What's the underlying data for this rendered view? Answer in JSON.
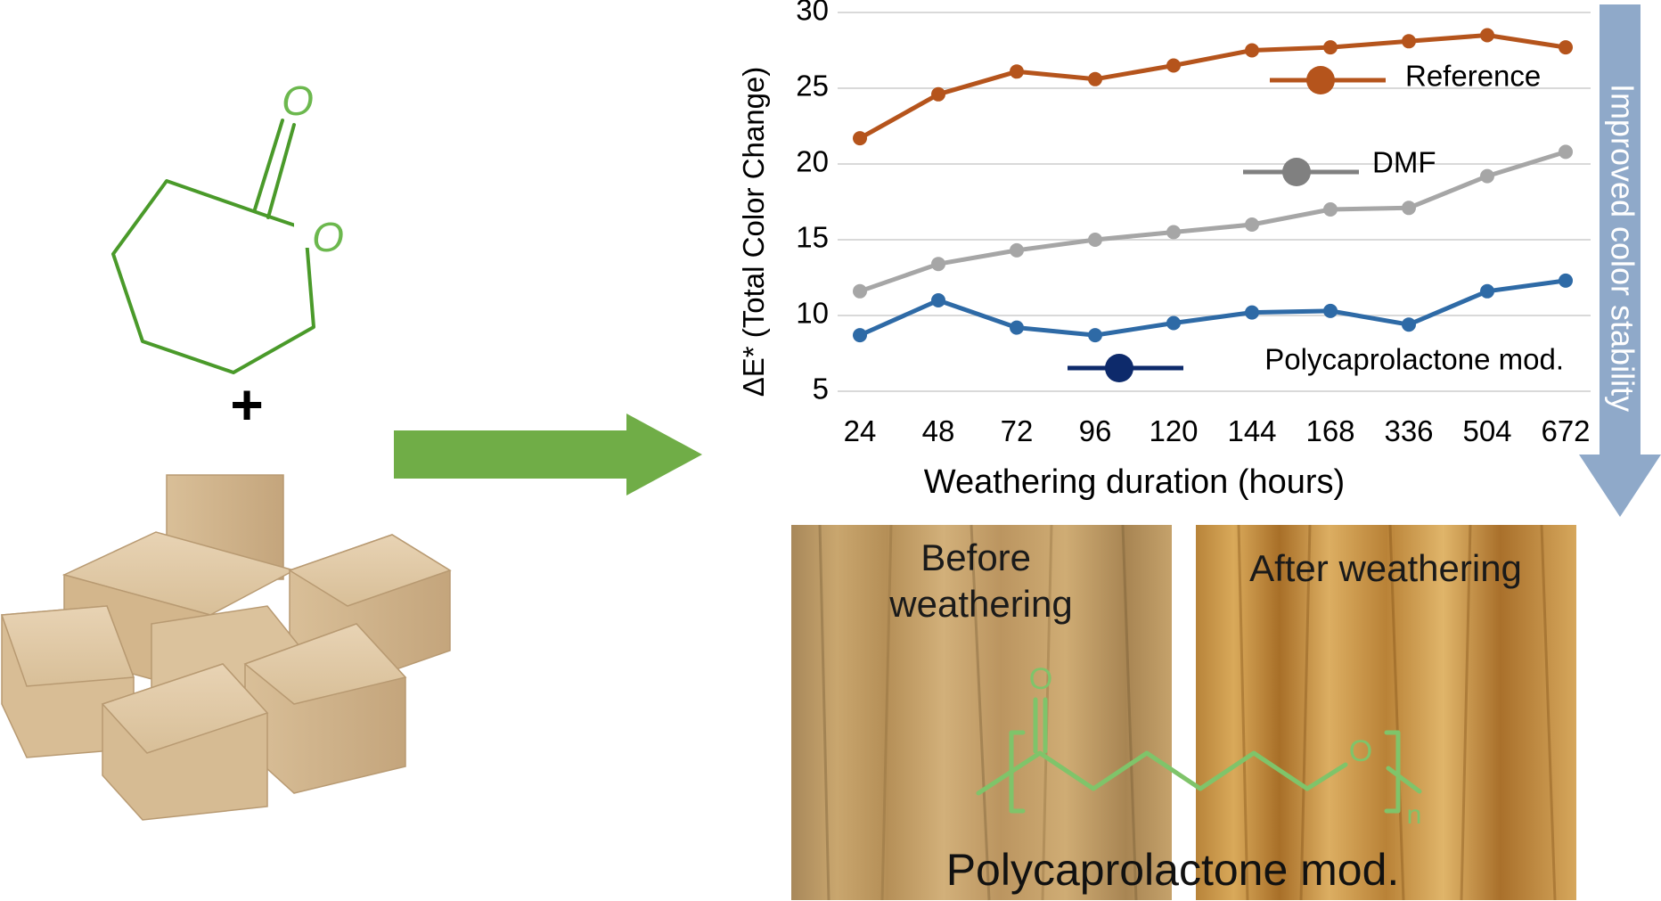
{
  "chart_data": {
    "type": "line",
    "title": "",
    "xlabel": "Weathering duration (hours)",
    "ylabel": "ΔE* (Total Color Change)",
    "categories": [
      "24",
      "48",
      "72",
      "96",
      "120",
      "144",
      "168",
      "336",
      "504",
      "672"
    ],
    "ylim": [
      5,
      30
    ],
    "yticks": [
      "5",
      "10",
      "15",
      "20",
      "25",
      "30"
    ],
    "grid": true,
    "legend": "inline",
    "series": [
      {
        "name": "Reference",
        "color": "#b5541c",
        "values": [
          21.7,
          24.6,
          26.1,
          25.6,
          26.5,
          27.5,
          27.7,
          28.1,
          28.5,
          27.7
        ]
      },
      {
        "name": "DMF",
        "color": "#a6a6a6",
        "legend_color": "#808080",
        "values": [
          11.6,
          13.4,
          14.3,
          15.0,
          15.5,
          16.0,
          17.0,
          17.1,
          19.2,
          20.8
        ]
      },
      {
        "name": "Polycaprolactone mod.",
        "color": "#2e6aa6",
        "legend_color": "#0d2a6b",
        "values": [
          8.7,
          11.0,
          9.2,
          8.7,
          9.5,
          10.2,
          10.3,
          9.4,
          11.6,
          12.3
        ]
      }
    ]
  },
  "side_arrow": {
    "label": "Improved color stability",
    "color": "#8fa9c9"
  },
  "reaction": {
    "plus": "+",
    "monomer_atoms": [
      "O",
      "O"
    ],
    "arrow_color": "#70ad47",
    "structure_color": "#4a9a2a"
  },
  "photos": {
    "before_label": "Before\nweathering",
    "after_label": "After weathering",
    "caption": "Polycaprolactone mod.",
    "polymer_atoms": [
      "O",
      "O"
    ],
    "polymer_subscript": "n",
    "polymer_color": "#7fc46a"
  }
}
